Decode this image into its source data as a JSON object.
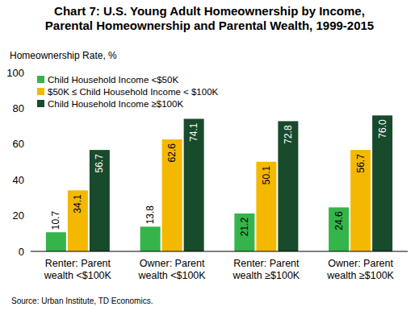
{
  "chart_data": {
    "type": "bar",
    "title": "Chart 7: U.S. Young Adult Homeownership by Income, Parental Homeownership and Parental Wealth, 1999-2015",
    "y_label": "Homeownership Rate, %",
    "source": "Source: Urban Institute, TD Economics.",
    "categories": [
      "Renter: Parent wealth <$100K",
      "Owner: Parent wealth <$100K",
      "Renter: Parent wealth ≥$100K",
      "Owner: Parent wealth ≥$100K"
    ],
    "series": [
      {
        "name": "Child Household Income <$50K",
        "color": "#34b44a",
        "values": [
          10.7,
          13.8,
          21.2,
          24.6
        ]
      },
      {
        "name": "$50K ≤ Child Household Income < $100K",
        "color": "#f5b800",
        "values": [
          34.1,
          62.6,
          50.1,
          56.7
        ]
      },
      {
        "name": "Child Household Income ≥$100K",
        "color": "#184a2c",
        "values": [
          56.7,
          74.1,
          72.8,
          76.0
        ],
        "value_labels": [
          "56.7",
          "74.1",
          "72.8",
          "76.0"
        ]
      }
    ],
    "ylim": [
      0,
      100
    ],
    "yticks": [
      0,
      20,
      40,
      60,
      80,
      100
    ],
    "grid": false,
    "legend": "top-left",
    "data_labels": true
  }
}
